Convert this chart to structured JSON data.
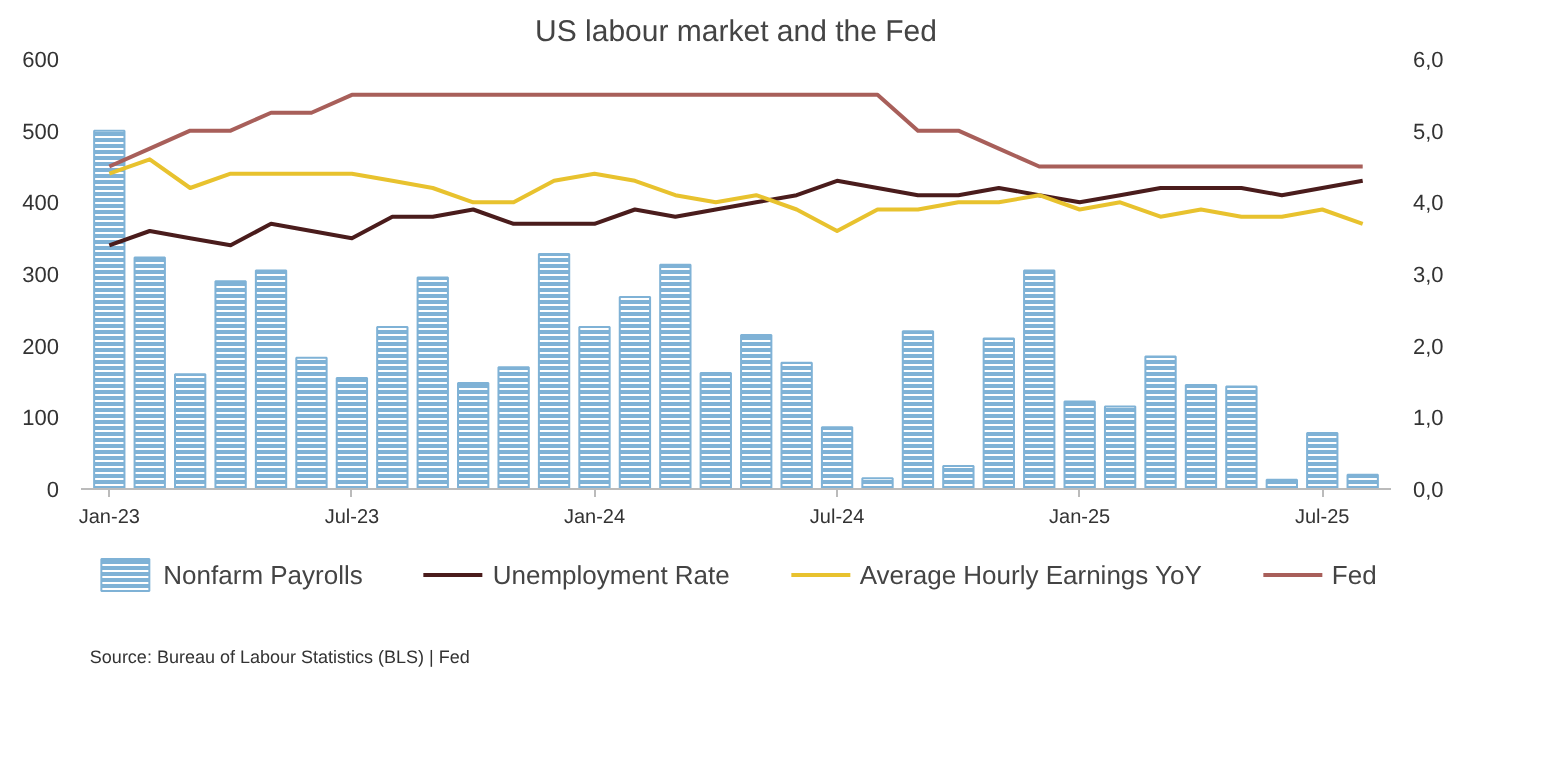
{
  "chart_data": {
    "type": "bar",
    "title": "US labour market and the Fed",
    "categories": [
      "Jan-23",
      null,
      null,
      null,
      null,
      null,
      "Jul-23",
      null,
      null,
      null,
      null,
      null,
      "Jan-24",
      null,
      null,
      null,
      null,
      null,
      "Jul-24",
      null,
      null,
      null,
      null,
      null,
      "Jan-25",
      null,
      null,
      null,
      null,
      null,
      "Jul-25",
      null
    ],
    "series": [
      {
        "name": "Nonfarm Payrolls",
        "color": "#7fb2d6",
        "values": [
          500,
          323,
          160,
          290,
          305,
          183,
          155,
          226,
          295,
          148,
          170,
          328,
          226,
          268,
          313,
          162,
          215,
          176,
          86,
          15,
          220,
          32,
          210,
          305,
          122,
          115,
          185,
          145,
          143,
          13,
          78,
          20
        ]
      },
      {
        "name": "Unemployment Rate",
        "type": "line",
        "axis": "y2",
        "color": "#4a1c1c",
        "values": [
          3.4,
          3.6,
          3.5,
          3.4,
          3.7,
          3.6,
          3.5,
          3.8,
          3.8,
          3.9,
          3.7,
          3.7,
          3.7,
          3.9,
          3.8,
          3.9,
          4.0,
          4.1,
          4.3,
          4.2,
          4.1,
          4.1,
          4.2,
          4.1,
          4.0,
          4.1,
          4.2,
          4.2,
          4.2,
          4.1,
          4.2,
          4.3
        ]
      },
      {
        "name": "Average Hourly Earnings YoY",
        "type": "line",
        "axis": "y2",
        "color": "#e8c22e",
        "values": [
          4.4,
          4.6,
          4.2,
          4.4,
          4.4,
          4.4,
          4.4,
          4.3,
          4.2,
          4.0,
          4.0,
          4.3,
          4.4,
          4.3,
          4.1,
          4.0,
          4.1,
          3.9,
          3.6,
          3.9,
          3.9,
          4.0,
          4.0,
          4.1,
          3.9,
          4.0,
          3.8,
          3.9,
          3.8,
          3.8,
          3.9,
          3.7
        ]
      },
      {
        "name": "Fed",
        "type": "line",
        "axis": "y2",
        "color": "#a85f5a",
        "values": [
          4.5,
          4.75,
          5.0,
          5.0,
          5.25,
          5.25,
          5.5,
          5.5,
          5.5,
          5.5,
          5.5,
          5.5,
          5.5,
          5.5,
          5.5,
          5.5,
          5.5,
          5.5,
          5.5,
          5.5,
          5.0,
          5.0,
          4.75,
          4.5,
          4.5,
          4.5,
          4.5,
          4.5,
          4.5,
          4.5,
          4.5,
          4.5
        ]
      }
    ],
    "ylim": [
      0,
      600
    ],
    "yticks": [
      0,
      100,
      200,
      300,
      400,
      500,
      600
    ],
    "y2lim": [
      0,
      6
    ],
    "y2ticks": [
      {
        "value": 0,
        "label": "0,0"
      },
      {
        "value": 1,
        "label": "1,0"
      },
      {
        "value": 2,
        "label": "2,0"
      },
      {
        "value": 3,
        "label": "3,0"
      },
      {
        "value": 4,
        "label": "4,0"
      },
      {
        "value": 5,
        "label": "5,0"
      },
      {
        "value": 6,
        "label": "6,0"
      }
    ],
    "grid": false,
    "legend": "bottom",
    "line_style": "solid",
    "marker": "none",
    "annotations": [
      "Source: Bureau of Labour Statistics (BLS) | Fed"
    ]
  }
}
